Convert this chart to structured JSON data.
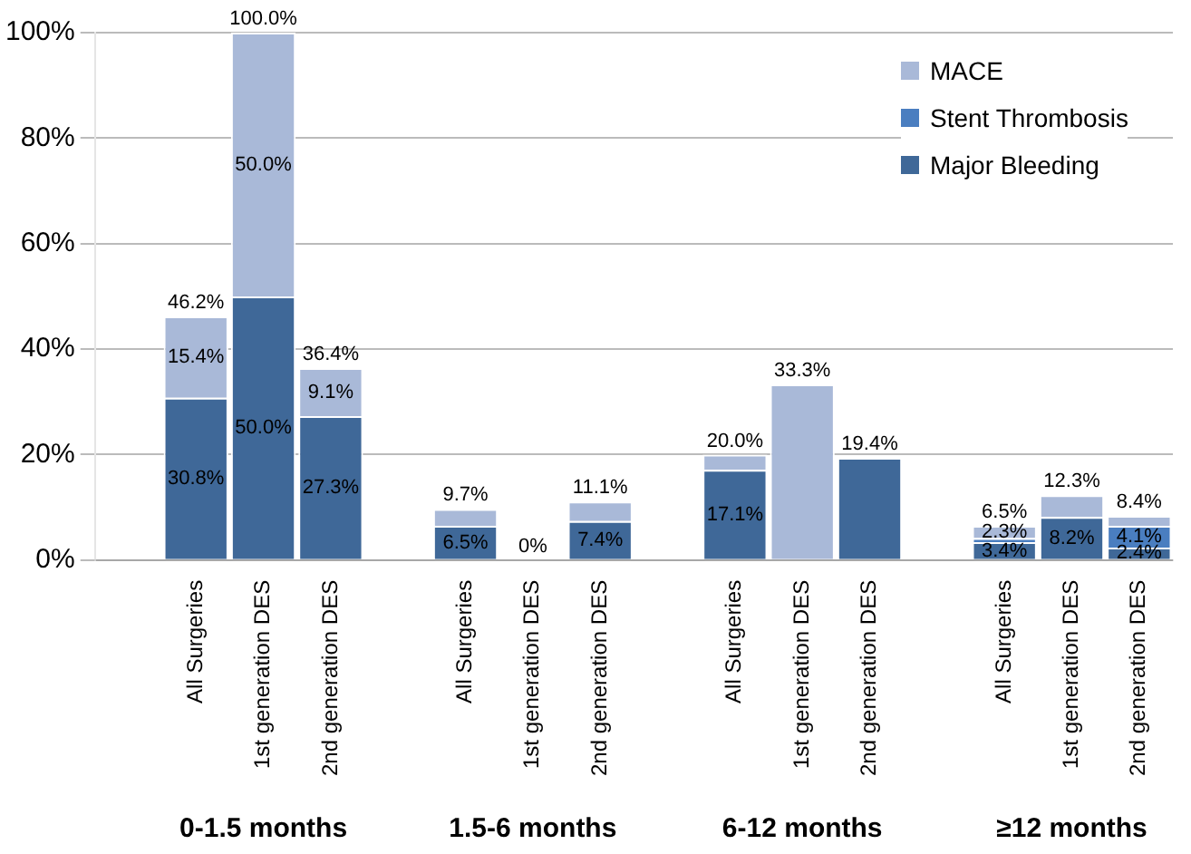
{
  "chart_data": {
    "type": "bar",
    "stacked": true,
    "categories": [
      null,
      "All Surgeries",
      "1st generation DES",
      "2nd generation DES",
      null,
      "All Surgeries",
      "1st generation DES",
      "2nd generation DES",
      null,
      "All Surgeries",
      "1st generation DES",
      "2nd generation DES",
      null,
      "All Surgeries",
      "1st generation DES",
      "2nd generation DES"
    ],
    "series": [
      {
        "name": "Major Bleeding",
        "color": "#3f6898",
        "values": [
          null,
          30.8,
          50.0,
          27.3,
          null,
          6.5,
          0,
          7.4,
          null,
          17.1,
          0,
          19.4,
          null,
          3.4,
          8.2,
          2.4
        ],
        "value_labels": [
          null,
          "30.8%",
          "50.0%",
          "27.3%",
          null,
          "6.5%",
          null,
          "7.4%",
          null,
          "17.1%",
          null,
          null,
          null,
          "3.4%",
          "8.2%",
          "2.4%"
        ]
      },
      {
        "name": "Stent Thrombosis",
        "color": "#4a7ec0",
        "values": [
          null,
          0,
          0,
          0,
          null,
          0,
          0,
          0,
          null,
          0,
          0,
          0,
          null,
          0.8,
          0,
          4.1
        ],
        "value_labels": [
          null,
          null,
          null,
          null,
          null,
          null,
          null,
          null,
          null,
          null,
          null,
          null,
          null,
          null,
          null,
          "4.1%"
        ]
      },
      {
        "name": "MACE",
        "color": "#a9b9d8",
        "values": [
          null,
          15.4,
          50.0,
          9.1,
          null,
          3.2,
          0,
          3.7,
          null,
          2.9,
          33.3,
          0,
          null,
          2.3,
          4.1,
          1.9
        ],
        "value_labels": [
          null,
          "15.4%",
          "50.0%",
          "9.1%",
          null,
          null,
          null,
          null,
          null,
          null,
          null,
          null,
          null,
          "2.3%",
          null,
          null
        ]
      }
    ],
    "totals": [
      null,
      "46.2%",
      "100.0%",
      "36.4%",
      null,
      "9.7%",
      "0%",
      "11.1%",
      null,
      "20.0%",
      "33.3%",
      "19.4%",
      null,
      "6.5%",
      "12.3%",
      "8.4%"
    ],
    "annotations": [
      "0-1.5 months",
      "1.5-6 months",
      "6-12 months",
      "≥12 months"
    ],
    "ylim": [
      0,
      100
    ],
    "yticks": [
      {
        "value": 0,
        "label": "0%"
      },
      {
        "value": 20,
        "label": "20%"
      },
      {
        "value": 40,
        "label": "40%"
      },
      {
        "value": 60,
        "label": "60%"
      },
      {
        "value": 80,
        "label": "80%"
      },
      {
        "value": 100,
        "label": "100%"
      }
    ],
    "grid": "y",
    "legend": "top right"
  }
}
